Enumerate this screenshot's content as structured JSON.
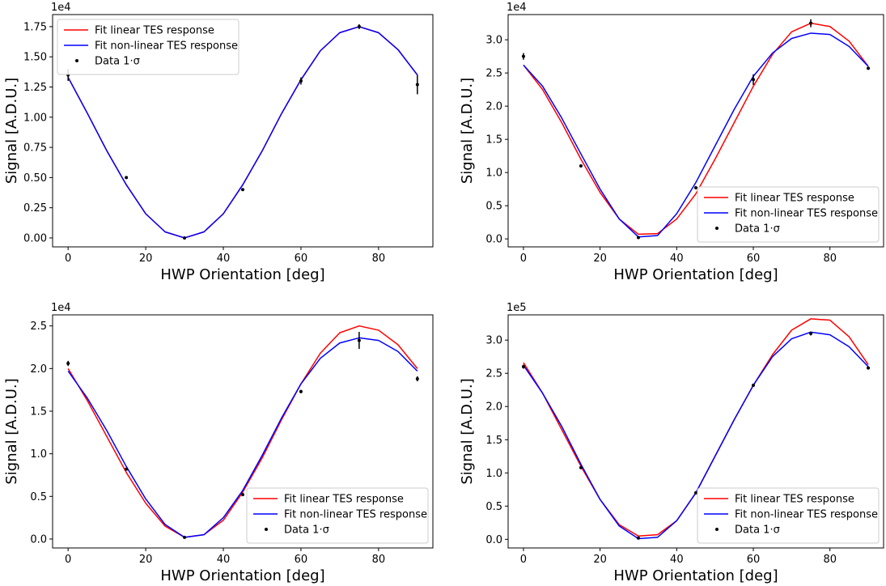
{
  "chart_data": [
    {
      "type": "line",
      "offset_label": "1e4",
      "x_label": "HWP Orientation [deg]",
      "y_label": "Signal [A.D.U.]",
      "xlim": [
        -4,
        94
      ],
      "xticks": [
        0,
        20,
        40,
        60,
        80
      ],
      "ylim": [
        -0.074,
        1.85
      ],
      "yticks": [
        {
          "value": 0,
          "label": "0.00"
        },
        {
          "value": 0.25,
          "label": "0.25"
        },
        {
          "value": 0.5,
          "label": "0.50"
        },
        {
          "value": 0.75,
          "label": "0.75"
        },
        {
          "value": 1,
          "label": "1.00"
        },
        {
          "value": 1.25,
          "label": "1.25"
        },
        {
          "value": 1.5,
          "label": "1.50"
        },
        {
          "value": 1.75,
          "label": "1.75"
        }
      ],
      "legend": "upper left",
      "series": [
        {
          "name": "Fit linear TES response",
          "color": "#ff0000",
          "x": [
            0,
            5,
            10,
            15,
            20,
            25,
            30,
            35,
            40,
            45,
            50,
            55,
            60,
            65,
            70,
            75,
            80,
            85,
            90
          ],
          "values": [
            1.33,
            1.03,
            0.72,
            0.44,
            0.2,
            0.05,
            0,
            0.05,
            0.2,
            0.44,
            0.72,
            1.03,
            1.31,
            1.55,
            1.7,
            1.75,
            1.7,
            1.56,
            1.35
          ]
        },
        {
          "name": "Fit non-linear TES response",
          "color": "#0000ff",
          "x": [
            0,
            5,
            10,
            15,
            20,
            25,
            30,
            35,
            40,
            45,
            50,
            55,
            60,
            65,
            70,
            75,
            80,
            85,
            90
          ],
          "values": [
            1.33,
            1.03,
            0.72,
            0.44,
            0.2,
            0.05,
            0,
            0.05,
            0.2,
            0.44,
            0.72,
            1.03,
            1.31,
            1.55,
            1.7,
            1.75,
            1.7,
            1.56,
            1.35
          ]
        },
        {
          "name": "Data 1·σ",
          "color": "#000000",
          "x": [
            0,
            15,
            30,
            45,
            60,
            75,
            90
          ],
          "values": [
            1.35,
            0.5,
            0,
            0.4,
            1.3,
            1.75,
            1.27
          ],
          "errors": [
            0.05,
            0.01,
            0.01,
            0.01,
            0.03,
            0.02,
            0.08
          ]
        }
      ]
    },
    {
      "type": "line",
      "offset_label": "1e4",
      "x_label": "HWP Orientation [deg]",
      "y_label": "Signal [A.D.U.]",
      "xlim": [
        -4,
        94
      ],
      "xticks": [
        0,
        20,
        40,
        60,
        80
      ],
      "ylim": [
        -0.12,
        3.38
      ],
      "yticks": [
        {
          "value": 0,
          "label": "0.0"
        },
        0.5,
        {
          "value": 1,
          "label": "1.0"
        },
        1.5,
        {
          "value": 2,
          "label": "2.0"
        },
        2.5,
        {
          "value": 3,
          "label": "3.0"
        }
      ],
      "legend": "lower right",
      "series": [
        {
          "name": "Fit linear TES response",
          "color": "#ff0000",
          "x": [
            0,
            5,
            10,
            15,
            20,
            25,
            30,
            35,
            40,
            45,
            50,
            55,
            60,
            65,
            70,
            75,
            80,
            85,
            90
          ],
          "values": [
            2.62,
            2.25,
            1.75,
            1.2,
            0.7,
            0.3,
            0.07,
            0.08,
            0.3,
            0.68,
            1.2,
            1.75,
            2.3,
            2.78,
            3.12,
            3.25,
            3.2,
            2.98,
            2.6
          ]
        },
        {
          "name": "Fit non-linear TES response",
          "color": "#0000ff",
          "x": [
            0,
            5,
            10,
            15,
            20,
            25,
            30,
            35,
            40,
            45,
            50,
            55,
            60,
            65,
            70,
            75,
            80,
            85,
            90
          ],
          "values": [
            2.62,
            2.3,
            1.82,
            1.28,
            0.75,
            0.3,
            0.03,
            0.05,
            0.38,
            0.85,
            1.4,
            1.95,
            2.45,
            2.8,
            3.02,
            3.1,
            3.08,
            2.9,
            2.6
          ]
        },
        {
          "name": "Data 1·σ",
          "color": "#000000",
          "x": [
            0,
            15,
            30,
            45,
            60,
            75,
            90
          ],
          "values": [
            2.75,
            1.1,
            0.02,
            0.77,
            2.4,
            3.25,
            2.57
          ],
          "errors": [
            0.05,
            0.01,
            0.01,
            0.02,
            0.08,
            0.06,
            0.01
          ]
        }
      ]
    },
    {
      "type": "line",
      "offset_label": "1e4",
      "x_label": "HWP Orientation [deg]",
      "y_label": "Signal [A.D.U.]",
      "xlim": [
        -4,
        94
      ],
      "xticks": [
        0,
        20,
        40,
        60,
        80
      ],
      "ylim": [
        -0.105,
        2.63
      ],
      "yticks": [
        {
          "value": 0,
          "label": "0.0"
        },
        0.5,
        {
          "value": 1,
          "label": "1.0"
        },
        1.5,
        {
          "value": 2,
          "label": "2.0"
        },
        2.5
      ],
      "legend": "lower right",
      "series": [
        {
          "name": "Fit linear TES response",
          "color": "#ff0000",
          "x": [
            0,
            5,
            10,
            15,
            20,
            25,
            30,
            35,
            40,
            45,
            50,
            55,
            60,
            65,
            70,
            75,
            80,
            85,
            90
          ],
          "values": [
            2.0,
            1.62,
            1.2,
            0.78,
            0.42,
            0.15,
            0.02,
            0.05,
            0.22,
            0.55,
            0.95,
            1.4,
            1.82,
            2.18,
            2.42,
            2.5,
            2.45,
            2.28,
            2.0
          ]
        },
        {
          "name": "Fit non-linear TES response",
          "color": "#0000ff",
          "x": [
            0,
            5,
            10,
            15,
            20,
            25,
            30,
            35,
            40,
            45,
            50,
            55,
            60,
            65,
            70,
            75,
            80,
            85,
            90
          ],
          "values": [
            1.97,
            1.65,
            1.27,
            0.85,
            0.47,
            0.17,
            0.02,
            0.05,
            0.25,
            0.57,
            0.98,
            1.42,
            1.82,
            2.12,
            2.3,
            2.36,
            2.33,
            2.2,
            1.97
          ]
        },
        {
          "name": "Data 1·σ",
          "color": "#000000",
          "x": [
            0,
            15,
            30,
            45,
            60,
            75,
            90
          ],
          "values": [
            2.06,
            0.82,
            0.02,
            0.52,
            1.73,
            2.33,
            1.88
          ],
          "errors": [
            0.03,
            0.01,
            0.01,
            0.01,
            0.02,
            0.1,
            0.03
          ]
        }
      ]
    },
    {
      "type": "line",
      "offset_label": "1e5",
      "x_label": "HWP Orientation [deg]",
      "y_label": "Signal [A.D.U.]",
      "xlim": [
        -4,
        94
      ],
      "xticks": [
        0,
        20,
        40,
        60,
        80
      ],
      "ylim": [
        -0.13,
        3.38
      ],
      "yticks": [
        {
          "value": 0,
          "label": "0.0"
        },
        0.5,
        {
          "value": 1,
          "label": "1.0"
        },
        1.5,
        {
          "value": 2,
          "label": "2.0"
        },
        2.5,
        {
          "value": 3,
          "label": "3.0"
        }
      ],
      "legend": "lower right",
      "series": [
        {
          "name": "Fit linear TES response",
          "color": "#ff0000",
          "x": [
            0,
            5,
            10,
            15,
            20,
            25,
            30,
            35,
            40,
            45,
            50,
            55,
            60,
            65,
            70,
            75,
            80,
            85,
            90
          ],
          "values": [
            2.66,
            2.2,
            1.65,
            1.1,
            0.6,
            0.22,
            0.05,
            0.07,
            0.28,
            0.7,
            1.25,
            1.8,
            2.32,
            2.78,
            3.15,
            3.32,
            3.3,
            3.05,
            2.63
          ]
        },
        {
          "name": "Fit non-linear TES response",
          "color": "#0000ff",
          "x": [
            0,
            5,
            10,
            15,
            20,
            25,
            30,
            35,
            40,
            45,
            50,
            55,
            60,
            65,
            70,
            75,
            80,
            85,
            90
          ],
          "values": [
            2.62,
            2.2,
            1.7,
            1.13,
            0.6,
            0.2,
            0.01,
            0.03,
            0.28,
            0.7,
            1.25,
            1.8,
            2.32,
            2.75,
            3.02,
            3.12,
            3.08,
            2.9,
            2.6
          ]
        },
        {
          "name": "Data 1·σ",
          "color": "#000000",
          "x": [
            0,
            15,
            30,
            45,
            60,
            75,
            90
          ],
          "values": [
            2.6,
            1.08,
            0.02,
            0.7,
            2.32,
            3.1,
            2.58
          ],
          "errors": [
            0.03,
            0.01,
            0.01,
            0.01,
            0.02,
            0.03,
            0.01
          ]
        }
      ]
    }
  ]
}
